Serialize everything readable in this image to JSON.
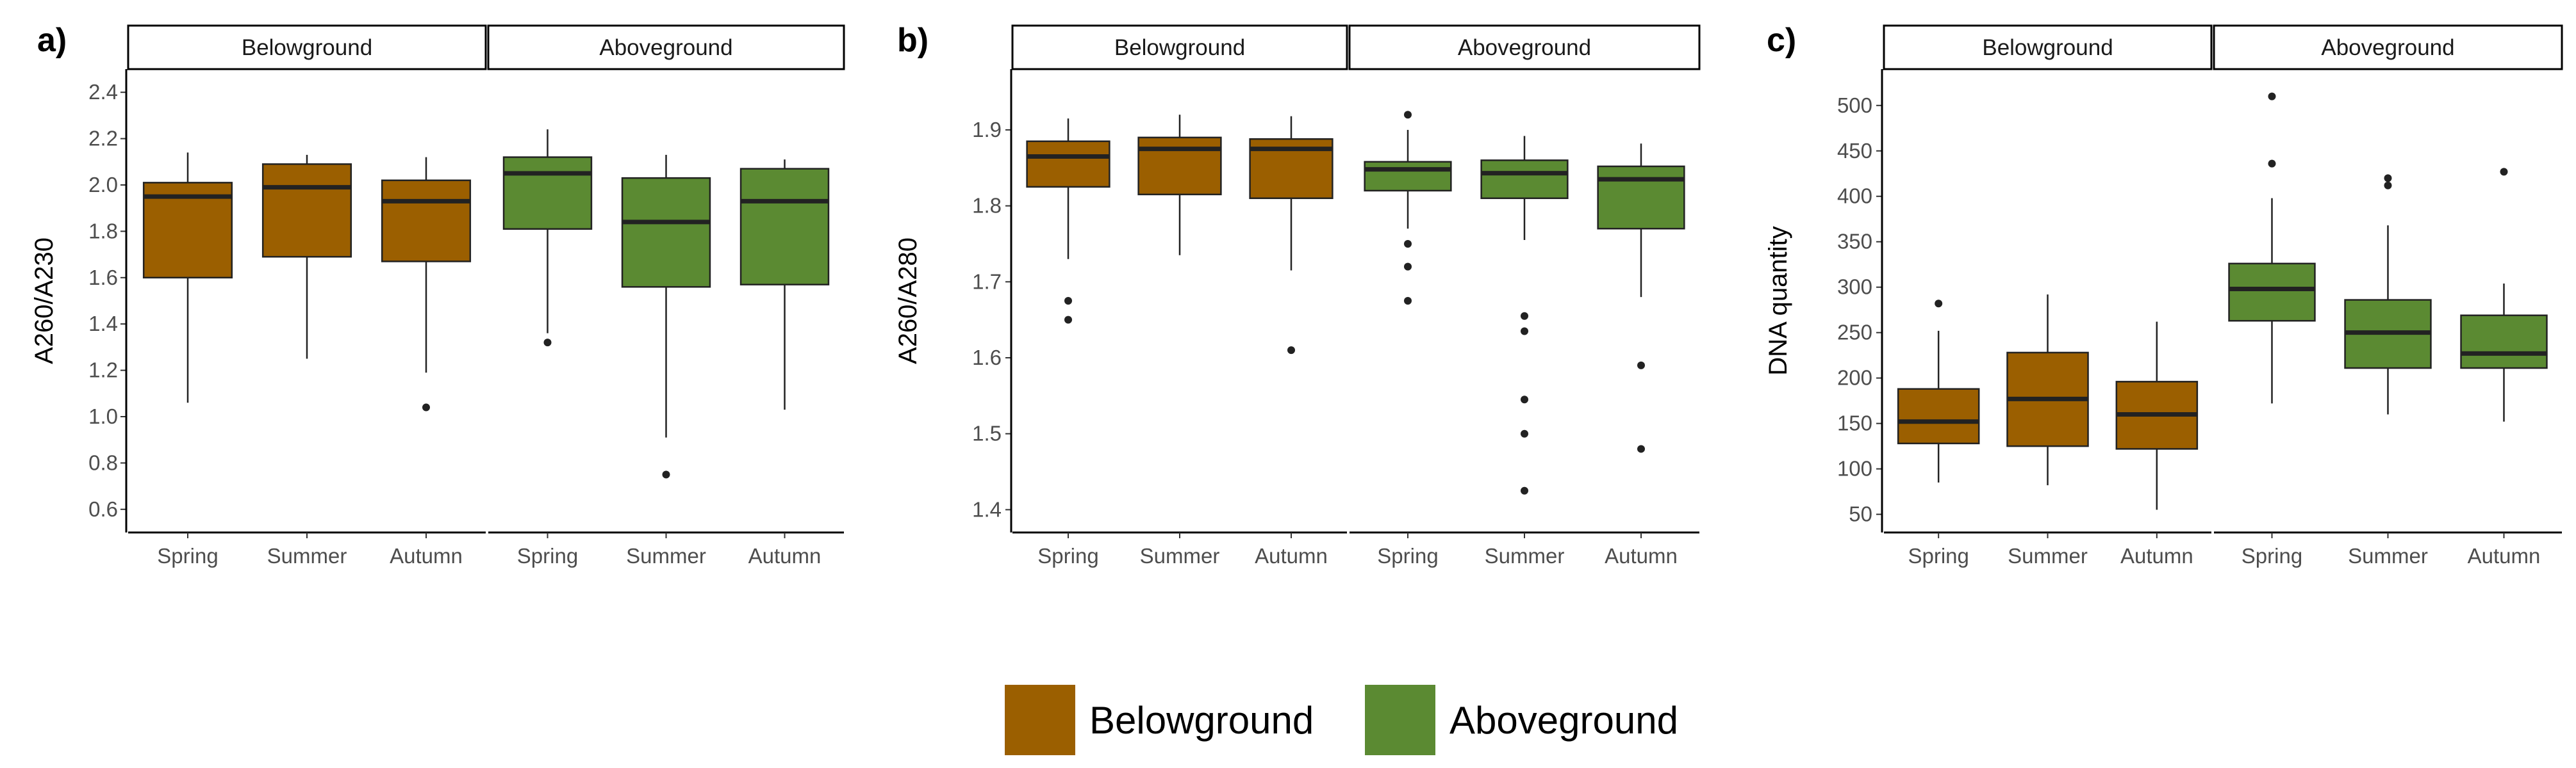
{
  "figure_title": "",
  "colors": {
    "belowground": "#9B5F00",
    "aboveground": "#5B8A32",
    "line": "#222222"
  },
  "legend": [
    {
      "label": "Belowground",
      "color": "#9B5F00"
    },
    {
      "label": "Aboveground",
      "color": "#5B8A32"
    }
  ],
  "chart_data": [
    {
      "type": "boxplot",
      "panel": "a)",
      "ylabel": "A260/A230",
      "ylim": [
        0.5,
        2.5
      ],
      "yticks": [
        0.6,
        0.8,
        1.0,
        1.2,
        1.4,
        1.6,
        1.8,
        2.0,
        2.2,
        2.4
      ],
      "ytick_labels": [
        "0.6",
        "0.8",
        "1.0",
        "1.2",
        "1.4",
        "1.6",
        "1.8",
        "2.0",
        "2.2",
        "2.4"
      ],
      "facets": [
        {
          "name": "Belowground",
          "categories": [
            "Spring",
            "Summer",
            "Autumn"
          ],
          "boxes": [
            {
              "whisker_low": 1.06,
              "q1": 1.6,
              "median": 1.95,
              "q3": 2.01,
              "whisker_high": 2.14,
              "outliers": []
            },
            {
              "whisker_low": 1.25,
              "q1": 1.69,
              "median": 1.99,
              "q3": 2.09,
              "whisker_high": 2.13,
              "outliers": []
            },
            {
              "whisker_low": 1.19,
              "q1": 1.67,
              "median": 1.93,
              "q3": 2.02,
              "whisker_high": 2.12,
              "outliers": [
                1.04
              ]
            }
          ]
        },
        {
          "name": "Aboveground",
          "categories": [
            "Spring",
            "Summer",
            "Autumn"
          ],
          "boxes": [
            {
              "whisker_low": 1.36,
              "q1": 1.81,
              "median": 2.05,
              "q3": 2.12,
              "whisker_high": 2.24,
              "outliers": [
                1.32
              ]
            },
            {
              "whisker_low": 0.91,
              "q1": 1.56,
              "median": 1.84,
              "q3": 2.03,
              "whisker_high": 2.13,
              "outliers": [
                0.75
              ]
            },
            {
              "whisker_low": 1.03,
              "q1": 1.57,
              "median": 1.93,
              "q3": 2.07,
              "whisker_high": 2.11,
              "outliers": []
            }
          ]
        }
      ]
    },
    {
      "type": "boxplot",
      "panel": "b)",
      "ylabel": "A260/A280",
      "ylim": [
        1.37,
        1.98
      ],
      "yticks": [
        1.4,
        1.5,
        1.6,
        1.7,
        1.8,
        1.9
      ],
      "ytick_labels": [
        "1.4",
        "1.5",
        "1.6",
        "1.7",
        "1.8",
        "1.9"
      ],
      "facets": [
        {
          "name": "Belowground",
          "categories": [
            "Spring",
            "Summer",
            "Autumn"
          ],
          "boxes": [
            {
              "whisker_low": 1.73,
              "q1": 1.825,
              "median": 1.865,
              "q3": 1.885,
              "whisker_high": 1.915,
              "outliers": [
                1.675,
                1.65
              ]
            },
            {
              "whisker_low": 1.735,
              "q1": 1.815,
              "median": 1.875,
              "q3": 1.89,
              "whisker_high": 1.92,
              "outliers": []
            },
            {
              "whisker_low": 1.715,
              "q1": 1.81,
              "median": 1.875,
              "q3": 1.888,
              "whisker_high": 1.918,
              "outliers": [
                1.61
              ]
            }
          ]
        },
        {
          "name": "Aboveground",
          "categories": [
            "Spring",
            "Summer",
            "Autumn"
          ],
          "boxes": [
            {
              "whisker_low": 1.77,
              "q1": 1.82,
              "median": 1.848,
              "q3": 1.858,
              "whisker_high": 1.9,
              "outliers": [
                1.92,
                1.75,
                1.72,
                1.675
              ]
            },
            {
              "whisker_low": 1.755,
              "q1": 1.81,
              "median": 1.843,
              "q3": 1.86,
              "whisker_high": 1.892,
              "outliers": [
                1.655,
                1.635,
                1.545,
                1.5,
                1.425
              ]
            },
            {
              "whisker_low": 1.68,
              "q1": 1.77,
              "median": 1.835,
              "q3": 1.852,
              "whisker_high": 1.882,
              "outliers": [
                1.59,
                1.48
              ]
            }
          ]
        }
      ]
    },
    {
      "type": "boxplot",
      "panel": "c)",
      "ylabel": "DNA quantity",
      "ylim": [
        30,
        540
      ],
      "yticks": [
        50,
        100,
        150,
        200,
        250,
        300,
        350,
        400,
        450,
        500
      ],
      "ytick_labels": [
        "50",
        "100",
        "150",
        "200",
        "250",
        "300",
        "350",
        "400",
        "450",
        "500"
      ],
      "facets": [
        {
          "name": "Belowground",
          "categories": [
            "Spring",
            "Summer",
            "Autumn"
          ],
          "boxes": [
            {
              "whisker_low": 85,
              "q1": 128,
              "median": 152,
              "q3": 188,
              "whisker_high": 252,
              "outliers": [
                282
              ]
            },
            {
              "whisker_low": 82,
              "q1": 125,
              "median": 177,
              "q3": 228,
              "whisker_high": 292,
              "outliers": []
            },
            {
              "whisker_low": 55,
              "q1": 122,
              "median": 160,
              "q3": 196,
              "whisker_high": 262,
              "outliers": []
            }
          ]
        },
        {
          "name": "Aboveground",
          "categories": [
            "Spring",
            "Summer",
            "Autumn"
          ],
          "boxes": [
            {
              "whisker_low": 172,
              "q1": 263,
              "median": 298,
              "q3": 326,
              "whisker_high": 398,
              "outliers": [
                510,
                436
              ]
            },
            {
              "whisker_low": 160,
              "q1": 211,
              "median": 250,
              "q3": 286,
              "whisker_high": 368,
              "outliers": [
                420,
                412
              ]
            },
            {
              "whisker_low": 152,
              "q1": 211,
              "median": 227,
              "q3": 269,
              "whisker_high": 304,
              "outliers": [
                427
              ]
            }
          ]
        }
      ]
    }
  ]
}
